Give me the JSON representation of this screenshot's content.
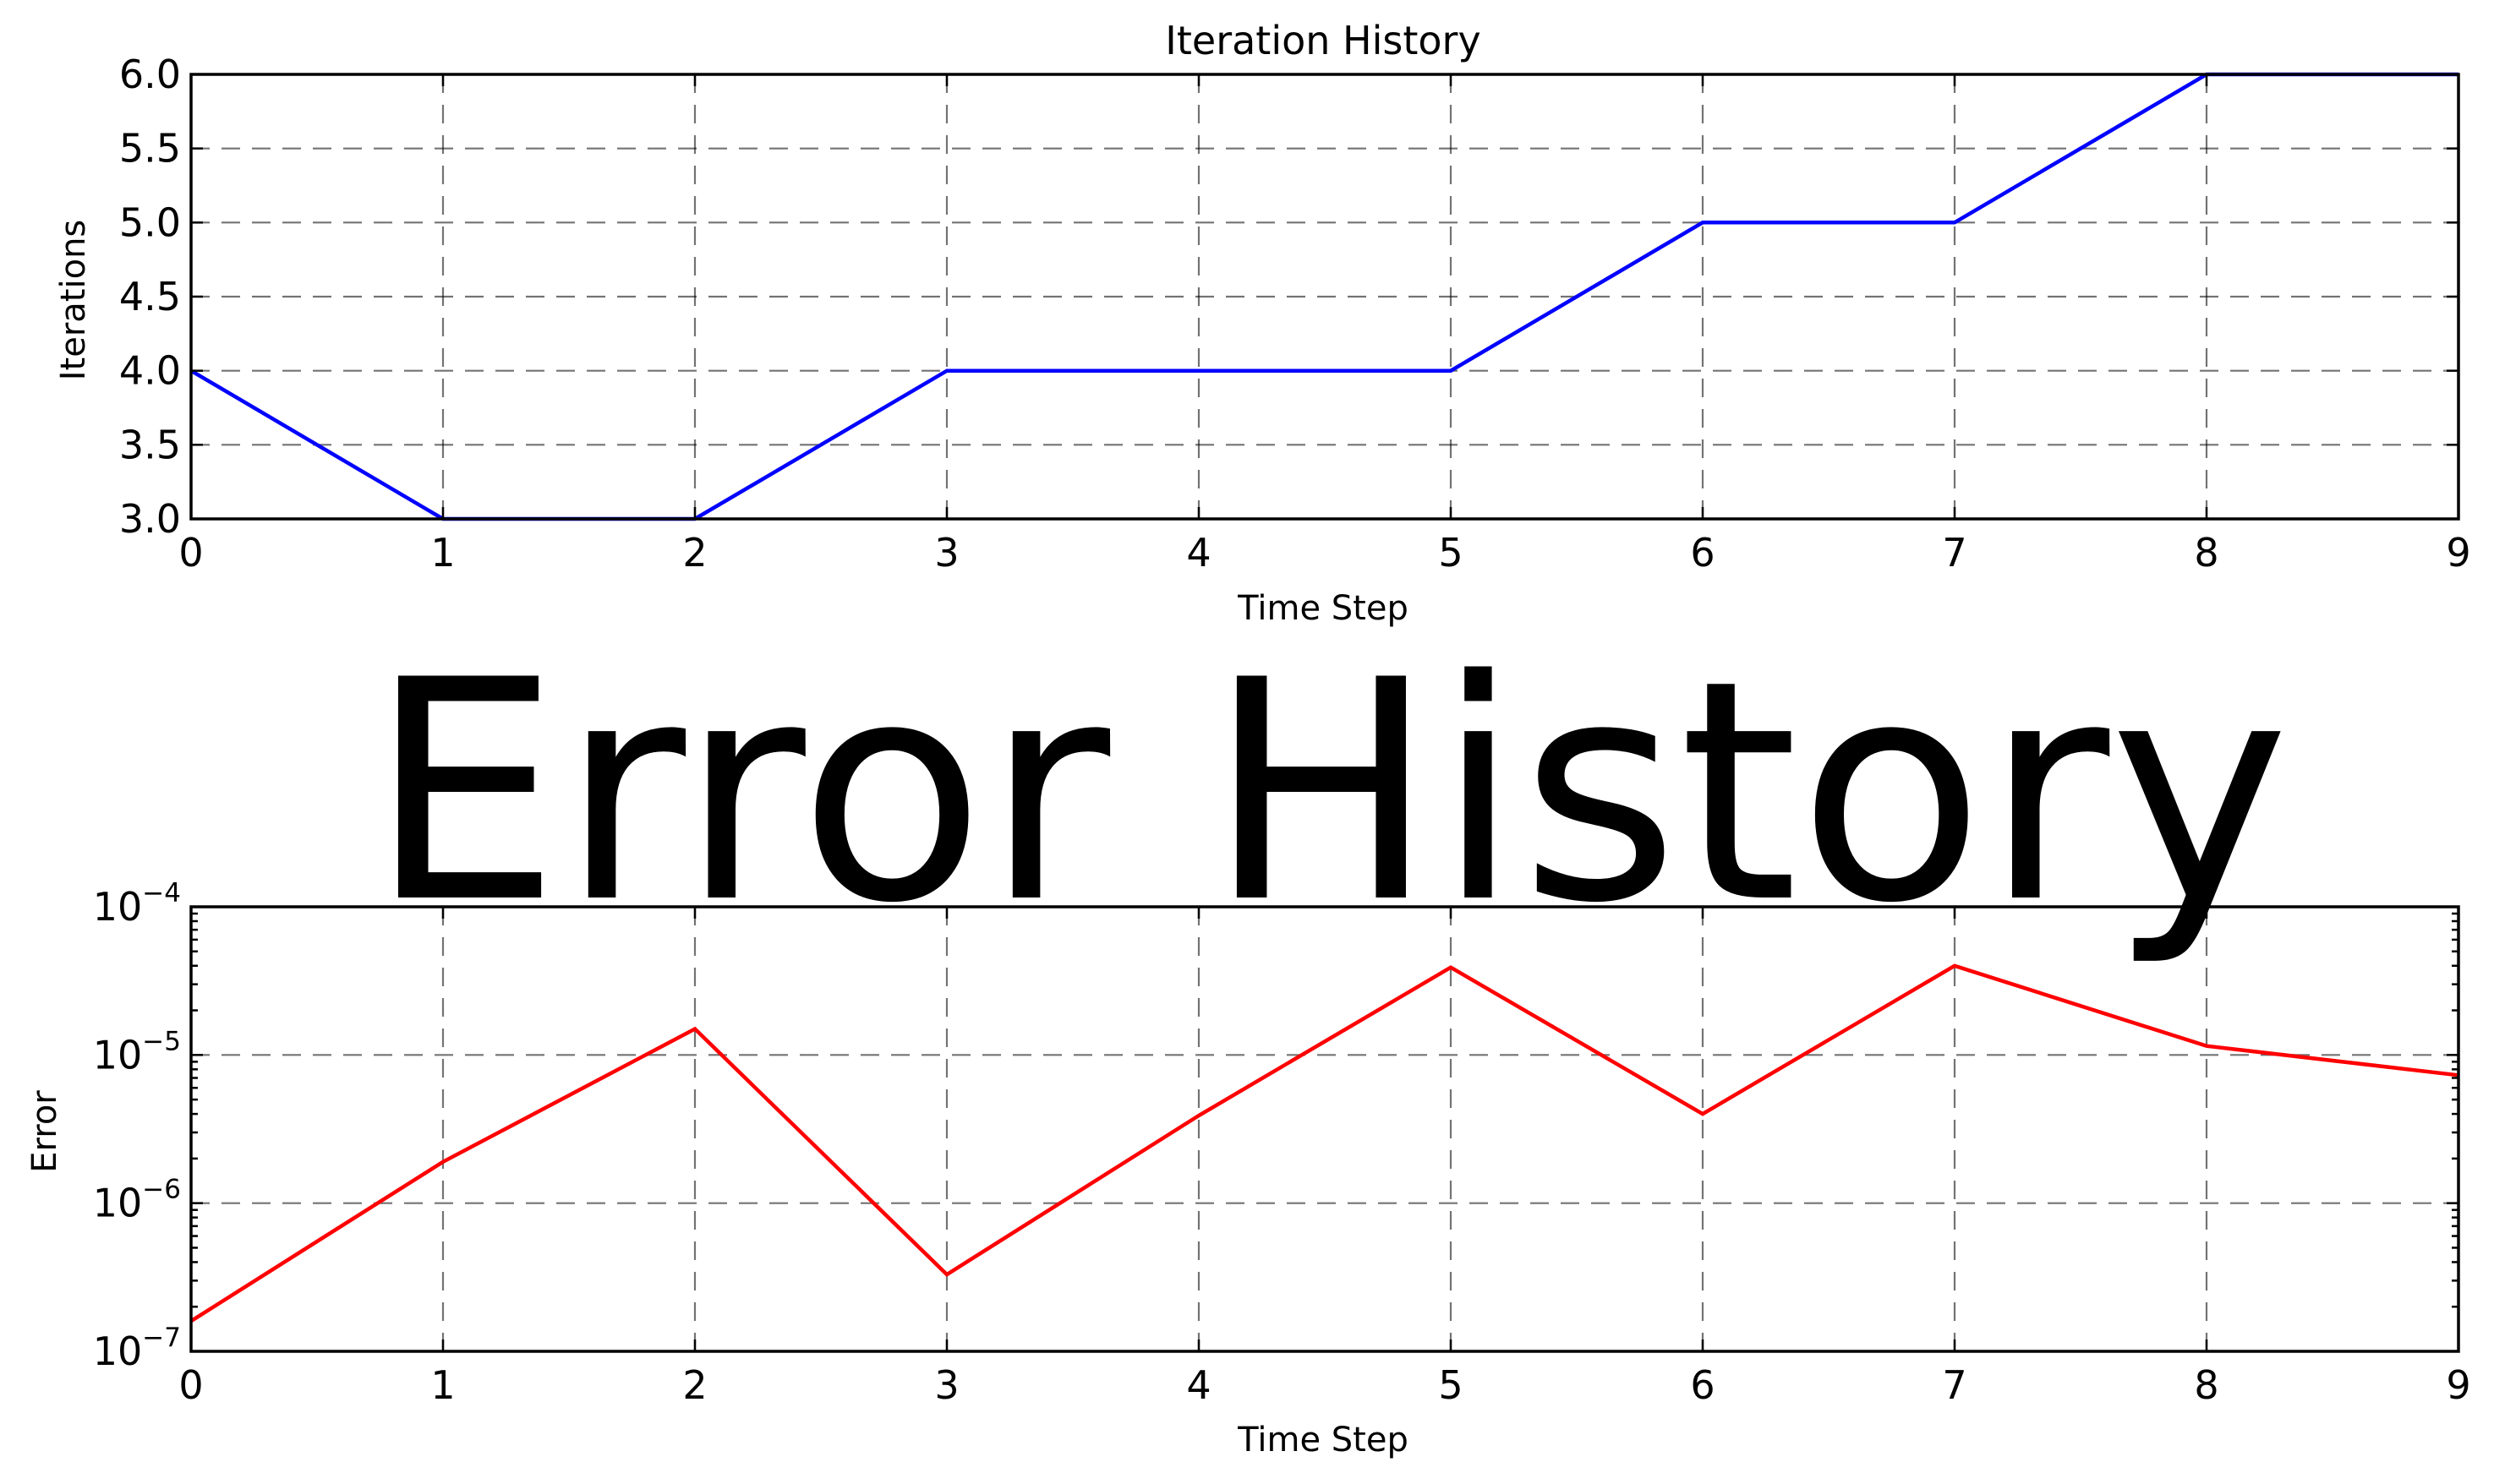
{
  "chart_data": [
    {
      "type": "line",
      "title": "Iteration History",
      "xlabel": "Time Step",
      "ylabel": "Iterations",
      "x": [
        0,
        1,
        2,
        3,
        4,
        5,
        6,
        7,
        8,
        9
      ],
      "xlim": [
        0,
        9
      ],
      "ylim": [
        3.0,
        6.0
      ],
      "yscale": "linear",
      "x_tick_labels": [
        "0",
        "1",
        "2",
        "3",
        "4",
        "5",
        "6",
        "7",
        "8",
        "9"
      ],
      "y_tick_values": [
        3.0,
        3.5,
        4.0,
        4.5,
        5.0,
        5.5,
        6.0
      ],
      "y_tick_labels": [
        "3.0",
        "3.5",
        "4.0",
        "4.5",
        "5.0",
        "5.5",
        "6.0"
      ],
      "grid": true,
      "series": [
        {
          "color": "#0000ff",
          "values": [
            4,
            3,
            3,
            4,
            4,
            4,
            5,
            5,
            6,
            6
          ]
        }
      ]
    },
    {
      "type": "line",
      "title": "Error History",
      "xlabel": "Time Step",
      "ylabel": "Error",
      "x": [
        0,
        1,
        2,
        3,
        4,
        5,
        6,
        7,
        8,
        9
      ],
      "xlim": [
        0,
        9
      ],
      "ylim": [
        1e-07,
        0.0001
      ],
      "yscale": "log",
      "x_tick_labels": [
        "0",
        "1",
        "2",
        "3",
        "4",
        "5",
        "6",
        "7",
        "8",
        "9"
      ],
      "y_tick_values": [
        1e-07,
        1e-06,
        1e-05,
        0.0001
      ],
      "y_tick_labels": [
        {
          "base": "10",
          "exp": "−7"
        },
        {
          "base": "10",
          "exp": "−6"
        },
        {
          "base": "10",
          "exp": "−5"
        },
        {
          "base": "10",
          "exp": "−4"
        }
      ],
      "grid": true,
      "series": [
        {
          "color": "#ff0000",
          "values": [
            1.6e-07,
            1.9e-06,
            1.5e-05,
            3.3e-07,
            3.9e-06,
            3.9e-05,
            4e-06,
            4e-05,
            1.15e-05,
            7.3e-06
          ]
        }
      ]
    }
  ]
}
